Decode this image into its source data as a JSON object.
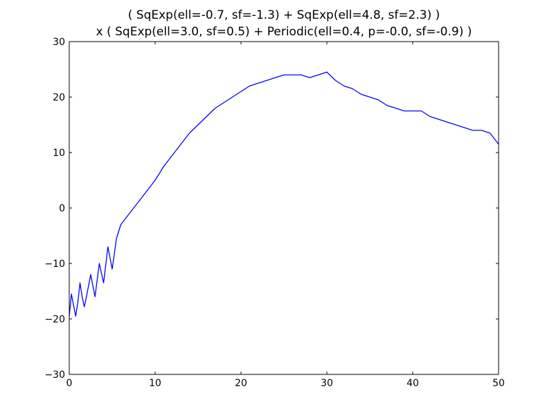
{
  "chart_data": {
    "type": "line",
    "title_lines": [
      "( SqExp(ell=-0.7, sf=-1.3) + SqExp(ell=4.8, sf=2.3) )",
      "x ( SqExp(ell=3.0, sf=0.5) + Periodic(ell=0.4, p=-0.0, sf=-0.9) )"
    ],
    "xlabel": "",
    "ylabel": "",
    "xlim": [
      0,
      50
    ],
    "ylim": [
      -30,
      30
    ],
    "x_ticks": [
      0,
      10,
      20,
      30,
      40,
      50
    ],
    "x_tick_labels": [
      "0",
      "10",
      "20",
      "30",
      "40",
      "50"
    ],
    "y_ticks": [
      -30,
      -20,
      -10,
      0,
      10,
      20,
      30
    ],
    "y_tick_labels": [
      "−30",
      "−20",
      "−10",
      "0",
      "10",
      "20",
      "30"
    ],
    "grid": false,
    "legend": "none",
    "line_color": "#0000ff",
    "series": [
      {
        "x": [
          0,
          0.25,
          0.5,
          0.75,
          1,
          1.25,
          1.5,
          1.75,
          2,
          2.5,
          3,
          3.5,
          4,
          4.5,
          5,
          5.5,
          6,
          7,
          8,
          9,
          10,
          11,
          12,
          13,
          14,
          15,
          16,
          17,
          18,
          19,
          20,
          21,
          22,
          23,
          24,
          25,
          26,
          27,
          28,
          29,
          30,
          31,
          32,
          33,
          34,
          35,
          36,
          37,
          38,
          39,
          40,
          41,
          42,
          43,
          44,
          45,
          46,
          47,
          48,
          49,
          50
        ],
        "y": [
          -19.5,
          -15.5,
          -17.5,
          -19.5,
          -17.0,
          -13.5,
          -16.0,
          -17.8,
          -16.0,
          -12.0,
          -16.0,
          -10.0,
          -13.5,
          -7.0,
          -11.0,
          -5.5,
          -3.0,
          -1.0,
          1.0,
          3.0,
          5.0,
          7.5,
          9.5,
          11.5,
          13.5,
          15.0,
          16.5,
          18.0,
          19.0,
          20.0,
          21.0,
          22.0,
          22.5,
          23.0,
          23.5,
          24.0,
          24.0,
          24.0,
          23.5,
          24.0,
          24.5,
          23.0,
          22.0,
          21.5,
          20.5,
          20.0,
          19.5,
          18.5,
          18.0,
          17.5,
          17.5,
          17.5,
          16.5,
          16.0,
          15.5,
          15.0,
          14.5,
          14.0,
          14.0,
          13.5,
          11.5
        ]
      }
    ]
  }
}
